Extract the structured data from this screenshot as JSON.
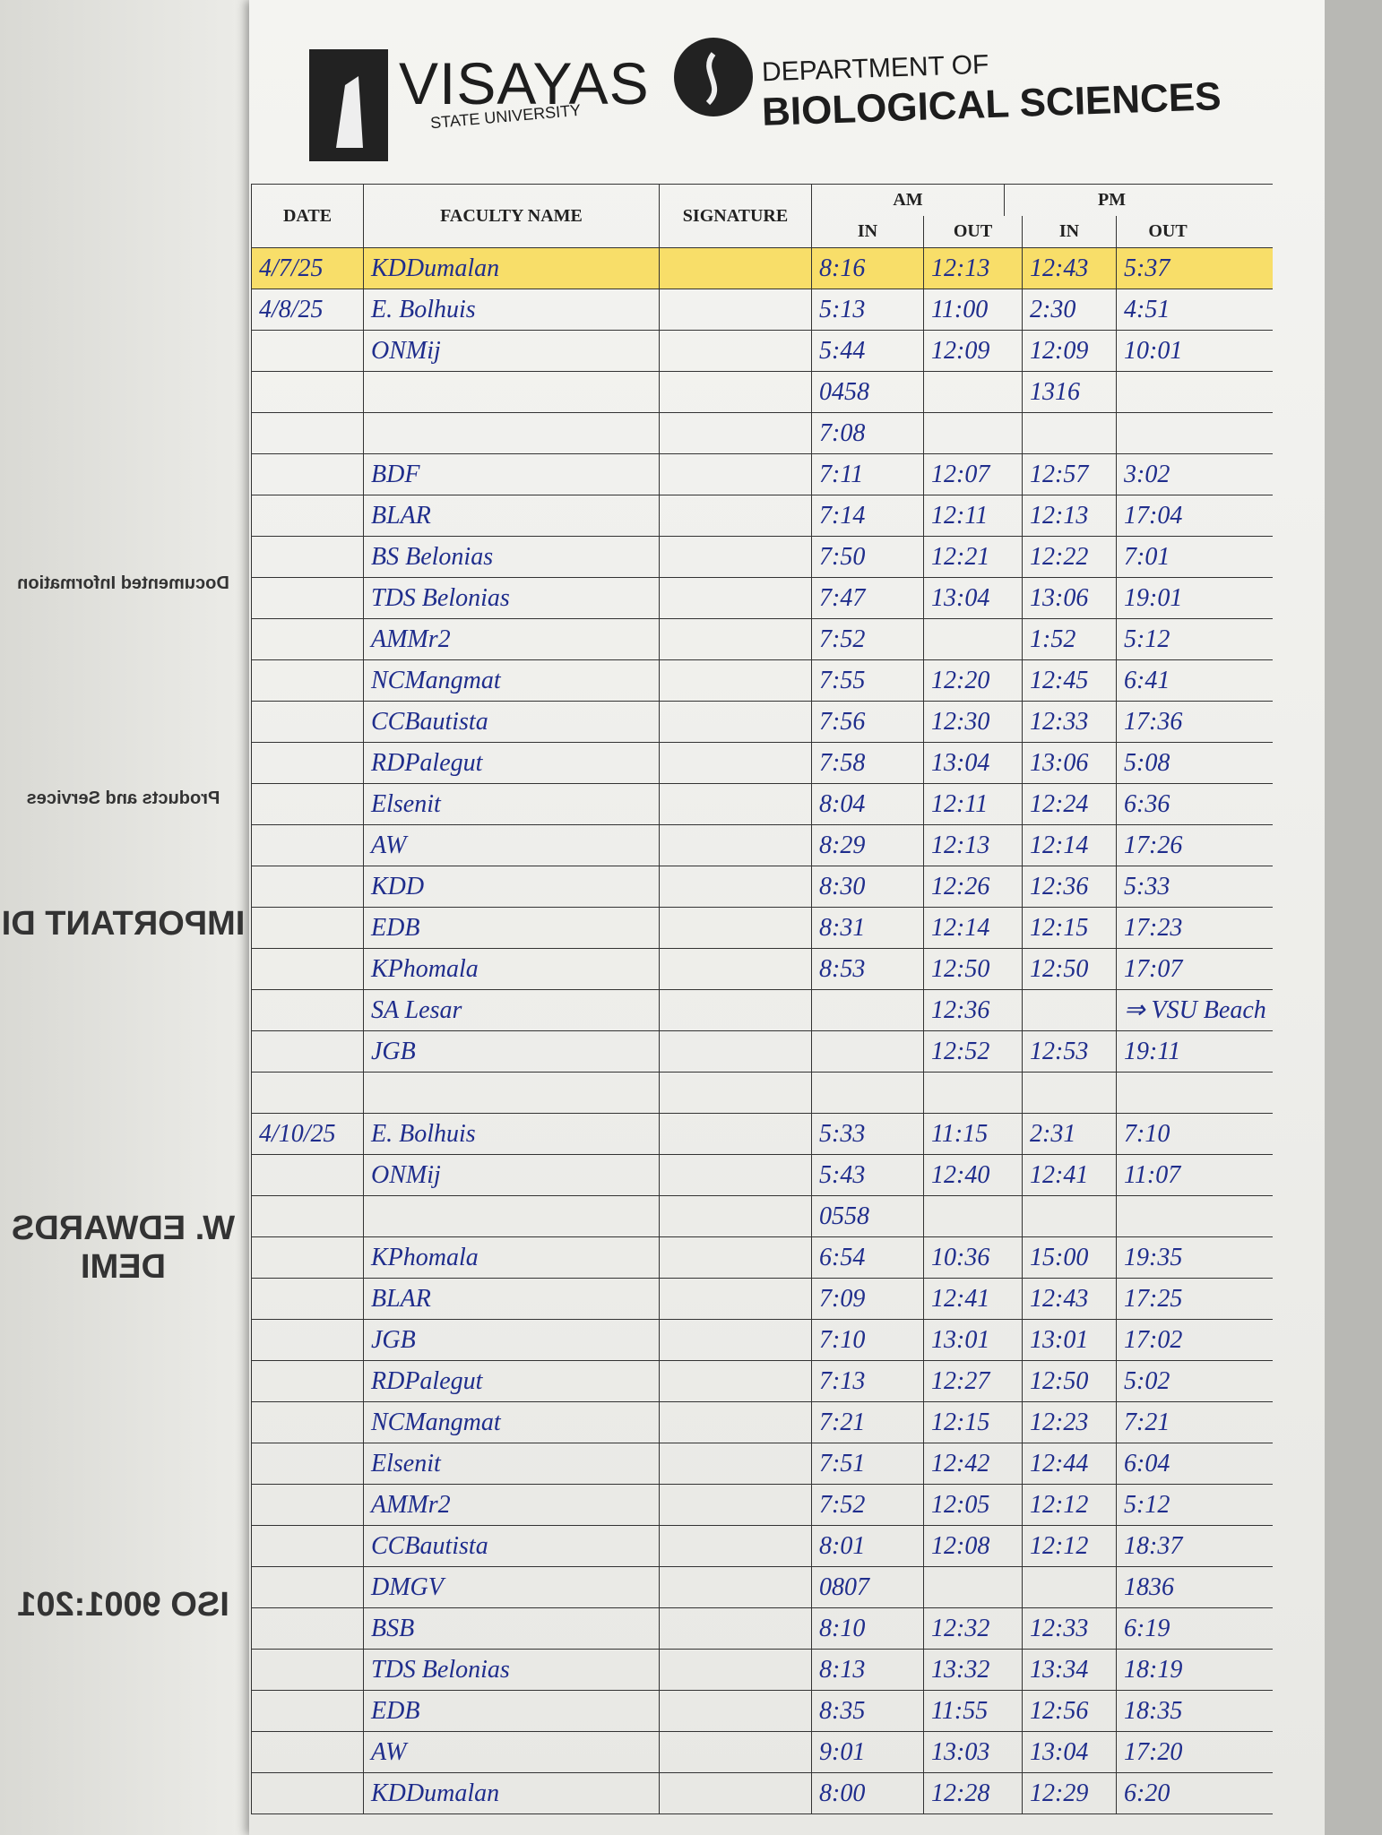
{
  "header": {
    "university": "VISAYAS",
    "university_sub": "STATE UNIVERSITY",
    "dept_line1": "DEPARTMENT OF",
    "dept_line2": "BIOLOGICAL SCIENCES"
  },
  "left_page": [
    "Documented Information",
    "Products and Services",
    "IMPORTANT DI",
    "W. EDWARDS DEMI",
    "ISO 9001:201"
  ],
  "table": {
    "columns": {
      "date": "DATE",
      "name": "FACULTY NAME",
      "signature": "SIGNATURE",
      "am": "AM",
      "pm": "PM",
      "am_in": "IN",
      "am_out": "OUT",
      "pm_in": "IN",
      "pm_out": "OUT"
    },
    "rows": [
      [
        "4/7/25",
        "KDDumalan",
        "8:16",
        "12:13",
        "12:43",
        "5:37"
      ],
      [
        "4/8/25",
        "E. Bolhuis",
        "5:13",
        "11:00",
        "2:30",
        "4:51"
      ],
      [
        null,
        "ONMij",
        "5:44",
        "12:09",
        "12:09",
        "10:01"
      ],
      [
        null,
        null,
        "0458",
        null,
        "1316",
        null
      ],
      [
        null,
        null,
        "7:08",
        null,
        null,
        null
      ],
      [
        null,
        "BDF",
        "7:11",
        "12:07",
        "12:57",
        "3:02"
      ],
      [
        null,
        "BLAR",
        "7:14",
        "12:11",
        "12:13",
        "17:04"
      ],
      [
        null,
        "BS Belonias",
        "7:50",
        "12:21",
        "12:22",
        "7:01"
      ],
      [
        null,
        "TDS Belonias",
        "7:47",
        "13:04",
        "13:06",
        "19:01"
      ],
      [
        null,
        "AMMr2",
        "7:52",
        null,
        "1:52",
        "5:12"
      ],
      [
        null,
        "NCMangmat",
        "7:55",
        "12:20",
        "12:45",
        "6:41"
      ],
      [
        null,
        "CCBautista",
        "7:56",
        "12:30",
        "12:33",
        "17:36"
      ],
      [
        null,
        "RDPalegut",
        "7:58",
        "13:04",
        "13:06",
        "5:08"
      ],
      [
        null,
        "Elsenit",
        "8:04",
        "12:11",
        "12:24",
        "6:36"
      ],
      [
        null,
        "AW",
        "8:29",
        "12:13",
        "12:14",
        "17:26"
      ],
      [
        null,
        "KDD",
        "8:30",
        "12:26",
        "12:36",
        "5:33"
      ],
      [
        null,
        "EDB",
        "8:31",
        "12:14",
        "12:15",
        "17:23"
      ],
      [
        null,
        "KPhomala",
        "8:53",
        "12:50",
        "12:50",
        "17:07"
      ],
      [
        null,
        "SA Lesar",
        null,
        "12:36",
        null,
        "⇒ VSU Beach"
      ],
      [
        null,
        "JGB",
        null,
        "12:52",
        "12:53",
        "19:11"
      ],
      [
        null,
        null,
        null,
        null,
        null,
        null
      ],
      [
        "4/10/25",
        "E. Bolhuis",
        "5:33",
        "11:15",
        "2:31",
        "7:10"
      ],
      [
        null,
        "ONMij",
        "5:43",
        "12:40",
        "12:41",
        "11:07"
      ],
      [
        null,
        null,
        "0558",
        null,
        null,
        null
      ],
      [
        null,
        "KPhomala",
        "6:54",
        "10:36",
        "15:00",
        "19:35"
      ],
      [
        null,
        "BLAR",
        "7:09",
        "12:41",
        "12:43",
        "17:25"
      ],
      [
        null,
        "JGB",
        "7:10",
        "13:01",
        "13:01",
        "17:02"
      ],
      [
        null,
        "RDPalegut",
        "7:13",
        "12:27",
        "12:50",
        "5:02"
      ],
      [
        null,
        "NCMangmat",
        "7:21",
        "12:15",
        "12:23",
        "7:21"
      ],
      [
        null,
        "Elsenit",
        "7:51",
        "12:42",
        "12:44",
        "6:04"
      ],
      [
        null,
        "AMMr2",
        "7:52",
        "12:05",
        "12:12",
        "5:12"
      ],
      [
        null,
        "CCBautista",
        "8:01",
        "12:08",
        "12:12",
        "18:37"
      ],
      [
        null,
        "DMGV",
        "0807",
        null,
        null,
        "1836"
      ],
      [
        null,
        "BSB",
        "8:10",
        "12:32",
        "12:33",
        "6:19"
      ],
      [
        null,
        "TDS Belonias",
        "8:13",
        "13:32",
        "13:34",
        "18:19"
      ],
      [
        null,
        "EDB",
        "8:35",
        "11:55",
        "12:56",
        "18:35"
      ],
      [
        null,
        "AW",
        "9:01",
        "13:03",
        "13:04",
        "17:20"
      ],
      [
        null,
        "KDDumalan",
        "8:00",
        "12:28",
        "12:29",
        "6:20"
      ]
    ]
  }
}
